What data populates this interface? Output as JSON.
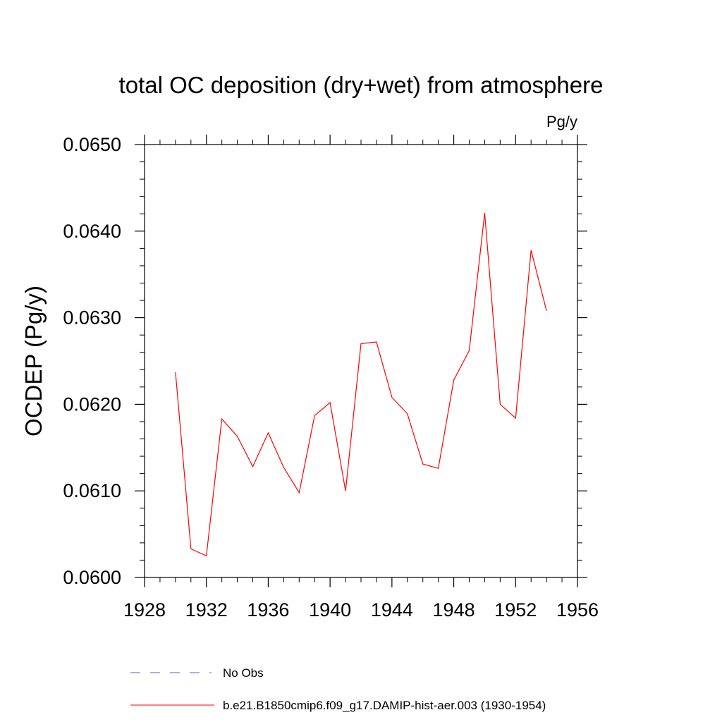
{
  "chart_data": {
    "type": "line",
    "title": "total OC deposition (dry+wet) from atmosphere",
    "units_label": "Pg/y",
    "ylabel": "OCDEP  (Pg/y)",
    "xlabel": "",
    "xlim": [
      1928,
      1956
    ],
    "ylim": [
      0.06,
      0.065
    ],
    "x_ticks": [
      {
        "value": 1928,
        "label": "1928"
      },
      {
        "value": 1932,
        "label": "1932"
      },
      {
        "value": 1936,
        "label": "1936"
      },
      {
        "value": 1940,
        "label": "1940"
      },
      {
        "value": 1944,
        "label": "1944"
      },
      {
        "value": 1948,
        "label": "1948"
      },
      {
        "value": 1952,
        "label": "1952"
      },
      {
        "value": 1956,
        "label": "1956"
      }
    ],
    "y_ticks": [
      {
        "value": 0.06,
        "label": "0.0600"
      },
      {
        "value": 0.061,
        "label": "0.0610"
      },
      {
        "value": 0.062,
        "label": "0.0620"
      },
      {
        "value": 0.063,
        "label": "0.0630"
      },
      {
        "value": 0.064,
        "label": "0.0640"
      },
      {
        "value": 0.065,
        "label": "0.0650"
      }
    ],
    "grid": false,
    "legend_position": "bottom",
    "series": [
      {
        "name": "b.e21.B1850cmip6.f09_g17.DAMIP-hist-aer.003 (1930-1954)",
        "color": "#ff0000",
        "style": "solid",
        "x": [
          1930,
          1931,
          1932,
          1933,
          1934,
          1935,
          1936,
          1937,
          1938,
          1939,
          1940,
          1941,
          1942,
          1943,
          1944,
          1945,
          1946,
          1947,
          1948,
          1949,
          1950,
          1951,
          1952,
          1953,
          1954
        ],
        "y": [
          0.06237,
          0.06033,
          0.06025,
          0.06183,
          0.06163,
          0.06128,
          0.06167,
          0.06127,
          0.06098,
          0.06187,
          0.06202,
          0.061,
          0.0627,
          0.06272,
          0.06208,
          0.06189,
          0.06131,
          0.06126,
          0.06228,
          0.06262,
          0.06421,
          0.062,
          0.06184,
          0.06378,
          0.06308
        ]
      }
    ],
    "legend": [
      {
        "label": "No Obs",
        "color": "#6a5acd",
        "style": "dashed"
      },
      {
        "label": "b.e21.B1850cmip6.f09_g17.DAMIP-hist-aer.003 (1930-1954)",
        "color": "#ff0000",
        "style": "solid"
      }
    ]
  }
}
